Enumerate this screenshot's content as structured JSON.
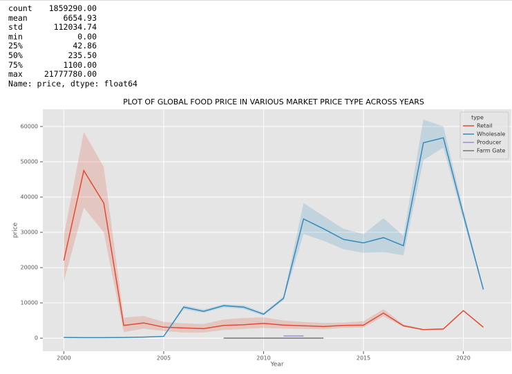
{
  "describe": {
    "rows": [
      [
        "count",
        "1859290.00"
      ],
      [
        "mean",
        "6654.93"
      ],
      [
        "std",
        "112034.74"
      ],
      [
        "min",
        "0.00"
      ],
      [
        "25%",
        "42.86"
      ],
      [
        "50%",
        "235.50"
      ],
      [
        "75%",
        "1100.00"
      ],
      [
        "max",
        "21777780.00"
      ]
    ],
    "footer": "Name: price, dtype: float64"
  },
  "chart_data": {
    "type": "line",
    "title": "PLOT OF GLOBAL FOOD PRICE IN VARIOUS MARKET PRICE TYPE ACROSS YEARS",
    "x_label": "Year",
    "y_label": "price",
    "legend_title": "type",
    "legend": "upper right",
    "grid": true,
    "x": [
      2000,
      2001,
      2002,
      2003,
      2004,
      2005,
      2006,
      2007,
      2008,
      2009,
      2010,
      2011,
      2012,
      2013,
      2014,
      2015,
      2016,
      2017,
      2018,
      2019,
      2020,
      2021
    ],
    "series": [
      {
        "name": "Retail",
        "color": "#e24a33",
        "values": [
          22000,
          47500,
          38300,
          3600,
          4300,
          3100,
          2900,
          2700,
          3600,
          3800,
          4200,
          3700,
          3500,
          3300,
          3600,
          3700,
          7100,
          3500,
          2400,
          2600,
          7800,
          3100
        ],
        "lower": [
          16000,
          37000,
          30000,
          1700,
          2700,
          2000,
          1600,
          1600,
          2300,
          2600,
          2900,
          2700,
          2600,
          2500,
          2900,
          3000,
          6200,
          3200,
          2300,
          2400,
          7600,
          2900
        ],
        "upper": [
          29000,
          58500,
          48500,
          5800,
          6300,
          4600,
          4200,
          4000,
          5300,
          5700,
          5900,
          5000,
          4600,
          4300,
          4400,
          4800,
          8200,
          3900,
          2600,
          2800,
          8000,
          3300
        ]
      },
      {
        "name": "Wholesale",
        "color": "#348abd",
        "values": [
          200,
          150,
          150,
          200,
          300,
          500,
          8800,
          7600,
          9200,
          8800,
          6800,
          11300,
          33800,
          31000,
          28000,
          27000,
          28500,
          26200,
          55400,
          56800,
          35000,
          13800
        ],
        "lower": [
          150,
          100,
          100,
          150,
          250,
          400,
          8200,
          7200,
          8700,
          8300,
          6400,
          10800,
          29500,
          27600,
          25200,
          24200,
          24400,
          23500,
          50500,
          54000,
          33500,
          13200
        ],
        "upper": [
          250,
          200,
          200,
          250,
          350,
          600,
          9300,
          8100,
          9600,
          9300,
          7200,
          11800,
          38300,
          34600,
          31000,
          29500,
          34000,
          29000,
          62000,
          60000,
          36500,
          14200
        ]
      },
      {
        "name": "Producer",
        "color": "#988ed5",
        "values": [
          null,
          null,
          null,
          null,
          null,
          null,
          null,
          null,
          null,
          null,
          null,
          600,
          600,
          null,
          null,
          null,
          null,
          null,
          null,
          null,
          null,
          null
        ]
      },
      {
        "name": "Farm Gate",
        "color": "#777777",
        "values": [
          null,
          null,
          null,
          null,
          null,
          null,
          null,
          null,
          0,
          0,
          0,
          0,
          0,
          0,
          null,
          null,
          null,
          null,
          null,
          null,
          null,
          null
        ]
      }
    ],
    "xlim": [
      1998.95,
      2022.4
    ],
    "xticks": [
      2000,
      2005,
      2010,
      2015,
      2020
    ],
    "ylim": [
      -3700,
      64900
    ],
    "yticks": [
      0,
      10000,
      20000,
      30000,
      40000,
      50000,
      60000
    ]
  }
}
